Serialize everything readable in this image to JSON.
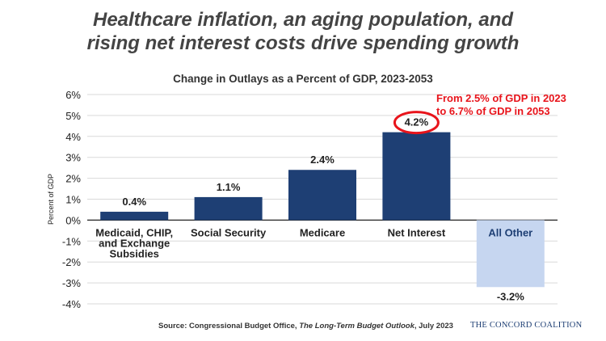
{
  "headline": "Healthcare inflation, an aging population, and rising net interest costs drive spending growth",
  "headline_lines": [
    "Healthcare inflation, an aging population, and",
    "rising net interest costs drive spending growth"
  ],
  "source": {
    "prefix": "Source: Congressional Budget Office, ",
    "title": "The Long-Term Budget Outlook",
    "suffix": ", July 2023"
  },
  "brand": "THE CONCORD COALITION",
  "colors": {
    "positive_bar": "#1e3f74",
    "negative_bar": "#c6d6f0",
    "annotation": "#e8141b"
  },
  "chart_data": {
    "type": "bar",
    "title": "Change in Outlays as a Percent of GDP, 2023-2053",
    "ylabel": "Percent of GDP",
    "xlabel": "",
    "ylim": [
      -4,
      6
    ],
    "yticks": [
      -4,
      -3,
      -2,
      -1,
      0,
      1,
      2,
      3,
      4,
      5,
      6
    ],
    "ytick_labels": [
      "-4%",
      "-3%",
      "-2%",
      "-1%",
      "0%",
      "1%",
      "2%",
      "3%",
      "4%",
      "5%",
      "6%"
    ],
    "grid": true,
    "categories": [
      [
        "Medicaid, CHIP,",
        "and Exchange",
        "Subsidies"
      ],
      [
        "Social Security"
      ],
      [
        "Medicare"
      ],
      [
        "Net Interest"
      ],
      [
        "All Other"
      ]
    ],
    "values": [
      0.4,
      1.1,
      2.4,
      4.2,
      -3.2
    ],
    "data_labels": [
      "0.4%",
      "1.1%",
      "2.4%",
      "4.2%",
      "-3.2%"
    ],
    "annotation": {
      "lines": [
        "From 2.5% of GDP in 2023",
        "to 6.7% of GDP in 2053"
      ],
      "target_category": "Net Interest"
    }
  }
}
